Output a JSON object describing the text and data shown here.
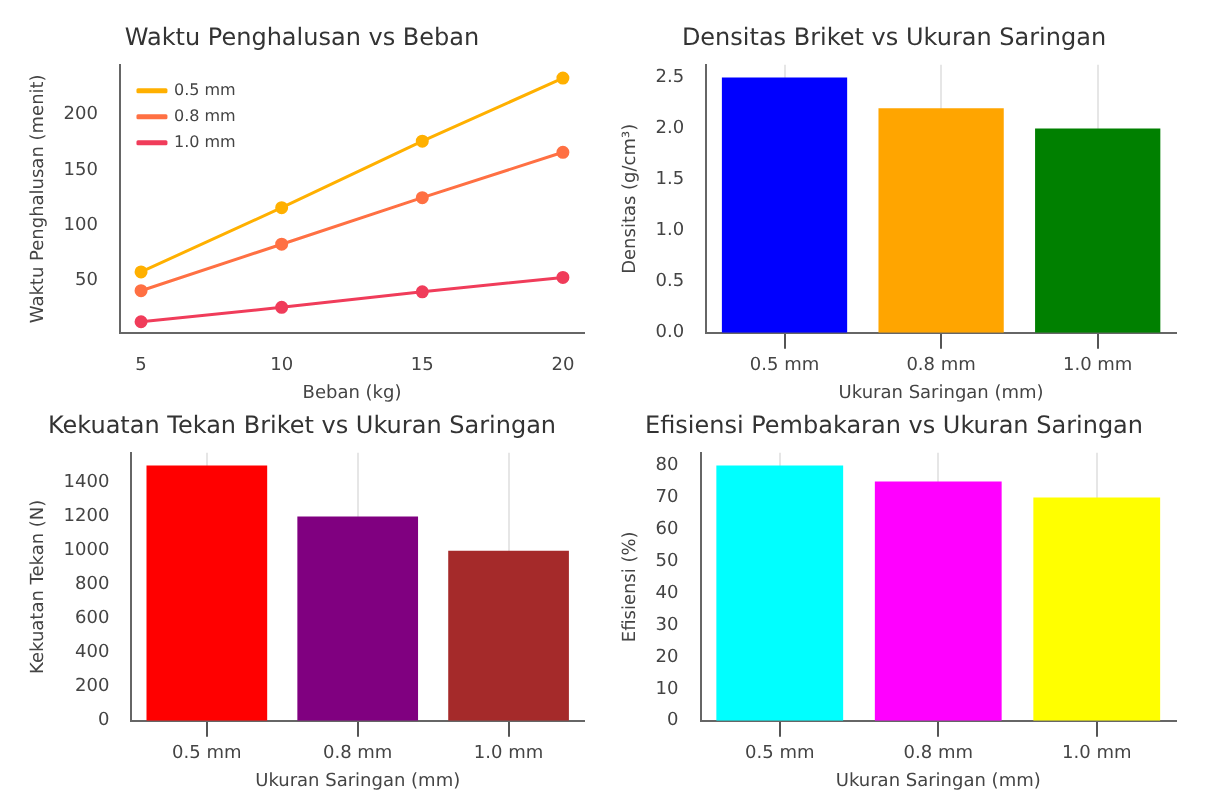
{
  "chart_data": [
    {
      "type": "line",
      "title": "Waktu Penghalusan vs Beban",
      "xlabel": "Beban (kg)",
      "ylabel": "Waktu Penghalusan (menit)",
      "x": [
        5,
        10,
        15,
        20
      ],
      "xlim": [
        4.25,
        20.75
      ],
      "xticks": [
        5,
        10,
        15,
        20
      ],
      "ylim": [
        3,
        245
      ],
      "yticks": [
        50,
        100,
        150,
        200
      ],
      "grid": false,
      "legend": "top left",
      "marker": "circle",
      "line_style": "solid",
      "series": [
        {
          "name": "0.5 mm",
          "color": "#ffb000",
          "values": [
            58,
            116,
            176,
            233
          ]
        },
        {
          "name": "0.8 mm",
          "color": "#ff7043",
          "values": [
            41,
            83,
            125,
            166
          ]
        },
        {
          "name": "1.0 mm",
          "color": "#f03c5a",
          "values": [
            13,
            26,
            40,
            53
          ]
        }
      ]
    },
    {
      "type": "bar",
      "title": "Densitas Briket vs Ukuran Saringan",
      "xlabel": "Ukuran Saringan (mm)",
      "ylabel": "Densitas (g/cm³)",
      "categories": [
        "0.5 mm",
        "0.8 mm",
        "1.0 mm"
      ],
      "values": [
        2.5,
        2.2,
        2.0
      ],
      "colors": [
        "#0000ff",
        "#ffa500",
        "#008000"
      ],
      "ylim": [
        0,
        2.625
      ],
      "yticks": [
        {
          "value": 0,
          "label": "0.0"
        },
        0.5,
        {
          "value": 1,
          "label": "1.0"
        },
        1.5,
        {
          "value": 2,
          "label": "2.0"
        },
        2.5
      ],
      "grid": "x"
    },
    {
      "type": "bar",
      "title": "Kekuatan Tekan Briket vs Ukuran Saringan",
      "xlabel": "Ukuran Saringan (mm)",
      "ylabel": "Kekuatan Tekan (N)",
      "categories": [
        "0.5 mm",
        "0.8 mm",
        "1.0 mm"
      ],
      "values": [
        1500,
        1200,
        1000
      ],
      "colors": [
        "#ff0000",
        "#800080",
        "#a52a2a"
      ],
      "ylim": [
        0,
        1575
      ],
      "yticks": [
        0,
        200,
        400,
        600,
        800,
        1000,
        1200,
        1400
      ],
      "grid": "x"
    },
    {
      "type": "bar",
      "title": "Efisiensi Pembakaran vs Ukuran Saringan",
      "xlabel": "Ukuran Saringan (mm)",
      "ylabel": "Efisiensi (%)",
      "categories": [
        "0.5 mm",
        "0.8 mm",
        "1.0 mm"
      ],
      "values": [
        80,
        75,
        70
      ],
      "colors": [
        "#00ffff",
        "#ff00ff",
        "#ffff00"
      ],
      "ylim": [
        0,
        84
      ],
      "yticks": [
        0,
        10,
        20,
        30,
        40,
        50,
        60,
        70,
        80
      ],
      "grid": "x"
    }
  ]
}
